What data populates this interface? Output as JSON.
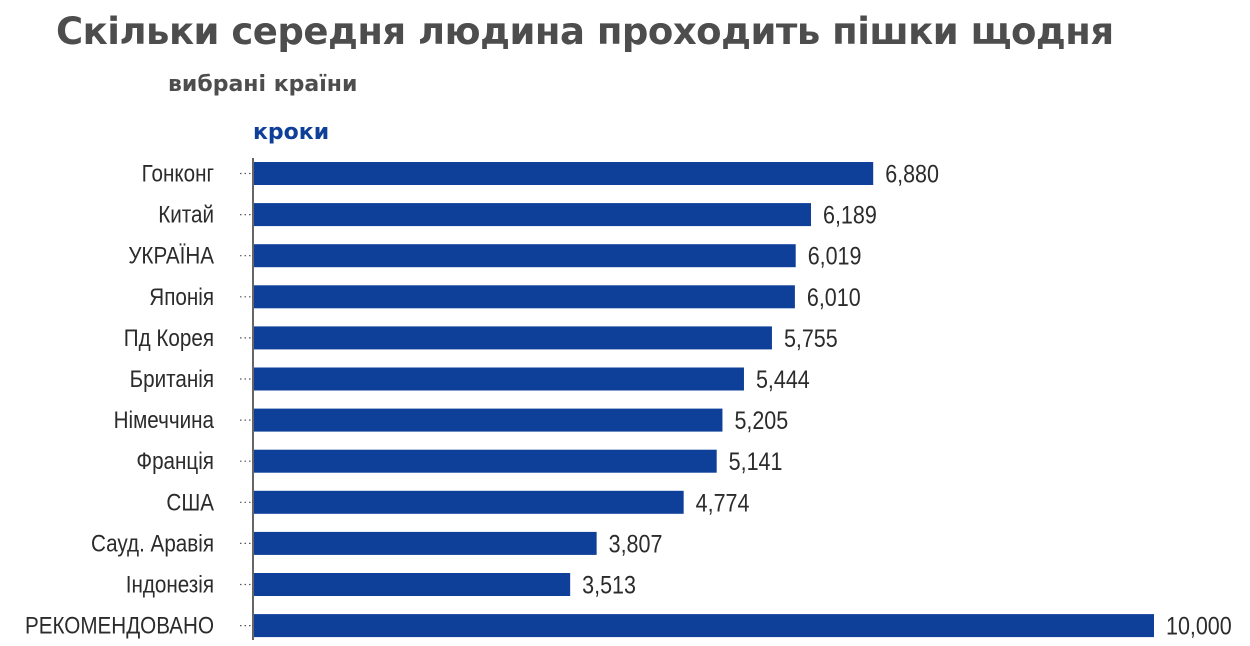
{
  "title": "Скільки середня людина проходить пішки щодня",
  "subtitle": "вибрані країни",
  "colors": {
    "bar": "#0e3f99",
    "title": "#4d4d4d",
    "label": "#2b2b2b"
  },
  "chart_data": {
    "type": "bar",
    "orientation": "horizontal",
    "title": "Скільки середня людина проходить пішки щодня",
    "subtitle": "вибрані країни",
    "xlabel": "кроки",
    "ylabel": "",
    "xlim": [
      0,
      10000
    ],
    "grid": false,
    "categories": [
      "Гонконг",
      "Китай",
      "УКРАЇНА",
      "Японія",
      "Пд Корея",
      "Британія",
      "Німеччина",
      "Франція",
      "США",
      "Сауд. Аравія",
      "Індонезія",
      "РЕКОМЕНДОВАНО"
    ],
    "values": [
      6880,
      6189,
      6019,
      6010,
      5755,
      5444,
      5205,
      5141,
      4774,
      3807,
      3513,
      10000
    ],
    "value_labels": [
      "6,880",
      "6,189",
      "6,019",
      "6,010",
      "5,755",
      "5,444",
      "5,205",
      "5,141",
      "4,774",
      "3,807",
      "3,513",
      "10,000"
    ]
  }
}
